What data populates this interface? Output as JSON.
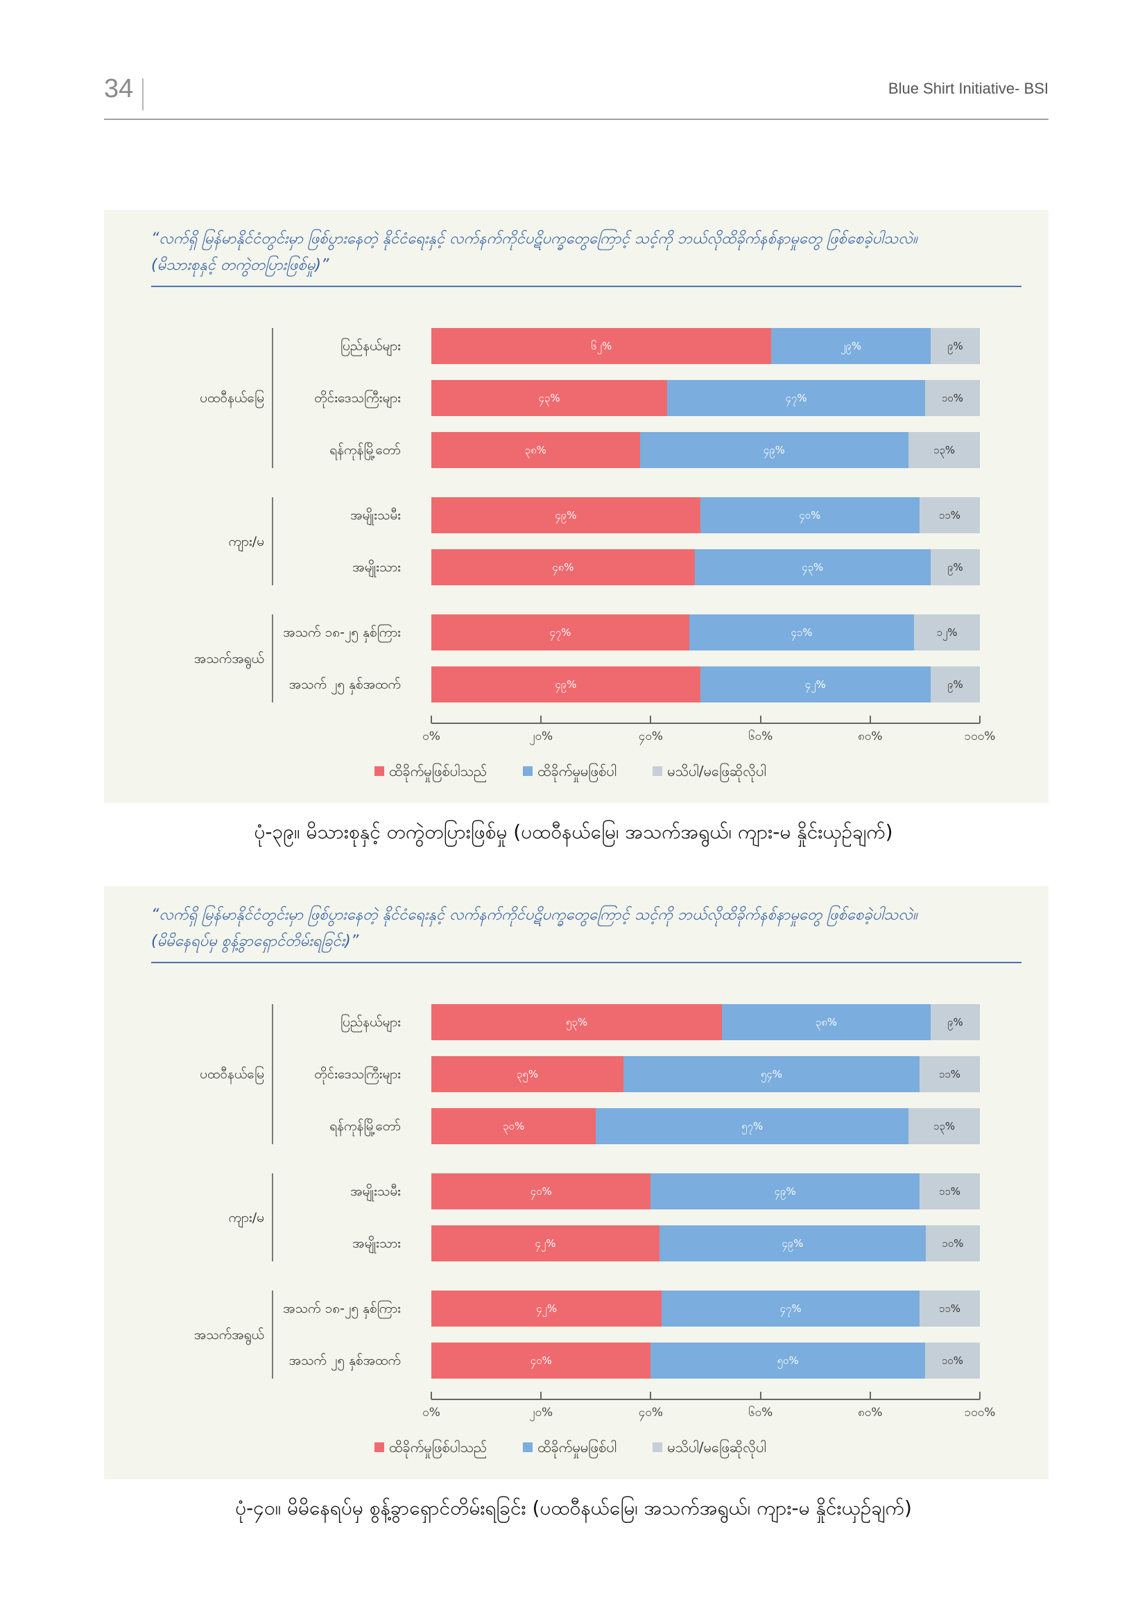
{
  "header": {
    "page_number": "34",
    "publication": "Blue Shirt Initiative- BSI"
  },
  "colors": {
    "panel_background": "#f4f5ec",
    "question_text": "#2f5ea3",
    "question_rule": "#4b72ad"
  },
  "figures": [
    {
      "caption": "ပုံ-၃၉။ မိသားစုနှင့် တကွဲတပြားဖြစ်မှု (ပထဝီနယ်မြေ၊ အသက်အရွယ်၊ ကျား-မ နှိုင်းယှဉ်ချက်)"
    },
    {
      "caption": "ပုံ-၄၀။ မိမိနေရပ်မှ စွန့်ခွာရှောင်တိမ်းရခြင်း (ပထဝီနယ်မြေ၊ အသက်အရွယ်၊ ကျား-မ နှိုင်းယှဉ်ချက်)"
    }
  ],
  "chart_data": [
    {
      "type": "bar",
      "orientation": "horizontal",
      "stacked": true,
      "title_lines": [
        "“လက်ရှိ မြန်မာနိုင်ငံတွင်းမှာ ဖြစ်ပွားနေတဲ့ နိုင်ငံရေးနှင့် လက်နက်ကိုင်ပဋိပက္ခတွေကြောင့် သင့်ကို ဘယ်လိုထိခိုက်နစ်နာမှုတွေ ဖြစ်စေခဲ့ပါသလဲ။",
        "(မိသားစုနှင့် တကွဲတပြားဖြစ်မှု)”"
      ],
      "xlim": [
        0,
        100
      ],
      "x_ticks": [
        "၀%",
        "၂၀%",
        "၄၀%",
        "၆၀%",
        "၈၀%",
        "၁၀၀%"
      ],
      "legend": "bottom",
      "grid": false,
      "groups": [
        {
          "label": "ပထဝီနယ်မြေ",
          "categories": [
            "ပြည်နယ်များ",
            "တိုင်းဒေသကြီးများ",
            "ရန်ကုန်မြို့တော်"
          ]
        },
        {
          "label": "ကျား/မ",
          "categories": [
            "အမျိုးသမီး",
            "အမျိုးသား"
          ]
        },
        {
          "label": "အသက်အရွယ်",
          "categories": [
            "အသက် ၁၈-၂၅ နှစ်ကြား",
            "အသက် ၂၅ နှစ်အထက်"
          ]
        }
      ],
      "series": [
        {
          "name": "ထိခိုက်မှုဖြစ်ပါသည်",
          "color": "#ef6a6f",
          "values": [
            62,
            43,
            38,
            49,
            48,
            47,
            49
          ],
          "data_labels": [
            "၆၂%",
            "၄၃%",
            "၃၈%",
            "၄၉%",
            "၄၈%",
            "၄၇%",
            "၄၉%"
          ]
        },
        {
          "name": "ထိခိုက်မှုမဖြစ်ပါ",
          "color": "#7badde",
          "values": [
            29,
            47,
            49,
            40,
            43,
            41,
            42
          ],
          "data_labels": [
            "၂၉%",
            "၄၇%",
            "၄၉%",
            "၄၀%",
            "၄၃%",
            "၄၁%",
            "၄၂%"
          ]
        },
        {
          "name": "မသိပါ/မဖြေဆိုလိုပါ",
          "color": "#c4cfd8",
          "values": [
            9,
            10,
            13,
            11,
            9,
            12,
            9
          ],
          "data_labels": [
            "၉%",
            "၁၀%",
            "၁၃%",
            "၁၁%",
            "၉%",
            "၁၂%",
            "၉%"
          ]
        }
      ]
    },
    {
      "type": "bar",
      "orientation": "horizontal",
      "stacked": true,
      "title_lines": [
        "“လက်ရှိ မြန်မာနိုင်ငံတွင်းမှာ ဖြစ်ပွားနေတဲ့ နိုင်ငံရေးနှင့် လက်နက်ကိုင်ပဋိပက္ခတွေကြောင့် သင့်ကို ဘယ်လိုထိခိုက်နစ်နာမှုတွေ ဖြစ်စေခဲ့ပါသလဲ။",
        "(မိမိနေရပ်မှ စွန့်ခွာရှောင်တိမ်းရခြင်း)”"
      ],
      "xlim": [
        0,
        100
      ],
      "x_ticks": [
        "၀%",
        "၂၀%",
        "၄၀%",
        "၆၀%",
        "၈၀%",
        "၁၀၀%"
      ],
      "legend": "bottom",
      "grid": false,
      "groups": [
        {
          "label": "ပထဝီနယ်မြေ",
          "categories": [
            "ပြည်နယ်များ",
            "တိုင်းဒေသကြီးများ",
            "ရန်ကုန်မြို့တော်"
          ]
        },
        {
          "label": "ကျား/မ",
          "categories": [
            "အမျိုးသမီး",
            "အမျိုးသား"
          ]
        },
        {
          "label": "အသက်အရွယ်",
          "categories": [
            "အသက် ၁၈-၂၅ နှစ်ကြား",
            "အသက် ၂၅ နှစ်အထက်"
          ]
        }
      ],
      "series": [
        {
          "name": "ထိခိုက်မှုဖြစ်ပါသည်",
          "color": "#ef6a6f",
          "values": [
            53,
            35,
            30,
            40,
            42,
            42,
            40
          ],
          "data_labels": [
            "၅၃%",
            "၃၅%",
            "၃၀%",
            "၄၀%",
            "၄၂%",
            "၄၂%",
            "၄၀%"
          ]
        },
        {
          "name": "ထိခိုက်မှုမဖြစ်ပါ",
          "color": "#7badde",
          "values": [
            38,
            54,
            57,
            49,
            49,
            47,
            50
          ],
          "data_labels": [
            "၃၈%",
            "၅၄%",
            "၅၇%",
            "၄၉%",
            "၄၉%",
            "၄၇%",
            "၅၀%"
          ]
        },
        {
          "name": "မသိပါ/မဖြေဆိုလိုပါ",
          "color": "#c4cfd8",
          "values": [
            9,
            11,
            13,
            11,
            10,
            11,
            10
          ],
          "data_labels": [
            "၉%",
            "၁၁%",
            "၁၃%",
            "၁၁%",
            "၁၀%",
            "၁၁%",
            "၁၀%"
          ]
        }
      ]
    }
  ]
}
